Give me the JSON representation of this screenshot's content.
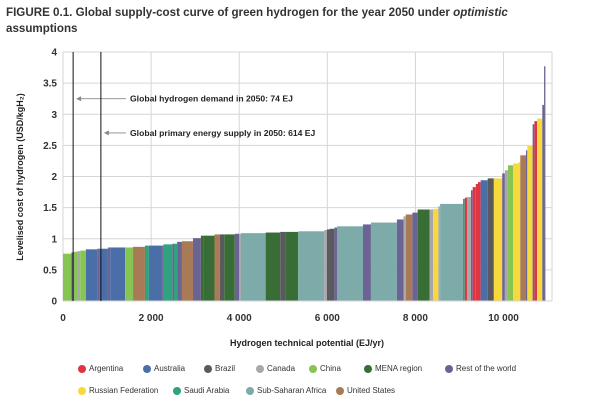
{
  "figure": {
    "title_prefix": "FIGURE 0.1. Global supply-cost curve of green hydrogen for the year 2050 under ",
    "title_italic": "optimistic",
    "title_suffix": "assumptions"
  },
  "chart_data": {
    "type": "bar",
    "subtype": "supply-cost-curve (variable-width bars)",
    "title": "Global supply-cost curve of green hydrogen for the year 2050 under optimistic assumptions",
    "xlabel": "Hydrogen technical potential (EJ/yr)",
    "ylabel": "Levelised cost of hydrogen (USD/kgH₂)",
    "xlim": [
      0,
      11100
    ],
    "ylim": [
      0,
      4
    ],
    "xticks": [
      0,
      2000,
      4000,
      6000,
      8000,
      10000
    ],
    "xtick_labels": [
      "0",
      "2 000",
      "4 000",
      "6 000",
      "8 000",
      "10 000"
    ],
    "yticks": [
      0,
      0.5,
      1,
      1.5,
      2,
      2.5,
      3,
      3.5,
      4
    ],
    "ytick_labels": [
      "0",
      "0.5",
      "1",
      "1.5",
      "2",
      "2.5",
      "3",
      "3.5",
      "4"
    ],
    "grid": true,
    "legend_position": "bottom",
    "regions": [
      {
        "name": "Argentina",
        "color": "#e03441"
      },
      {
        "name": "Australia",
        "color": "#4a6fa8"
      },
      {
        "name": "Brazil",
        "color": "#5a5a5e"
      },
      {
        "name": "Canada",
        "color": "#a8a8ac"
      },
      {
        "name": "China",
        "color": "#86c552"
      },
      {
        "name": "MENA region",
        "color": "#386d36"
      },
      {
        "name": "Rest of the world",
        "color": "#6b6393"
      },
      {
        "name": "Russian Federation",
        "color": "#f7d93b"
      },
      {
        "name": "Saudi Arabia",
        "color": "#2ea47e"
      },
      {
        "name": "Sub-Saharan Africa",
        "color": "#7dabaa"
      },
      {
        "name": "United States",
        "color": "#a87a56"
      }
    ],
    "segments": [
      {
        "x0": 0,
        "x1": 190,
        "cost": 0.76,
        "region": "China"
      },
      {
        "x0": 190,
        "x1": 230,
        "cost": 0.78,
        "region": "Rest of the world"
      },
      {
        "x0": 230,
        "x1": 330,
        "cost": 0.79,
        "region": "China"
      },
      {
        "x0": 330,
        "x1": 390,
        "cost": 0.8,
        "region": "Canada"
      },
      {
        "x0": 390,
        "x1": 520,
        "cost": 0.81,
        "region": "China"
      },
      {
        "x0": 520,
        "x1": 780,
        "cost": 0.83,
        "region": "Australia"
      },
      {
        "x0": 780,
        "x1": 820,
        "cost": 0.84,
        "region": "Rest of the world"
      },
      {
        "x0": 820,
        "x1": 1020,
        "cost": 0.84,
        "region": "Australia"
      },
      {
        "x0": 1020,
        "x1": 1070,
        "cost": 0.86,
        "region": "Rest of the world"
      },
      {
        "x0": 1070,
        "x1": 1410,
        "cost": 0.86,
        "region": "Australia"
      },
      {
        "x0": 1410,
        "x1": 1590,
        "cost": 0.86,
        "region": "China"
      },
      {
        "x0": 1590,
        "x1": 1860,
        "cost": 0.87,
        "region": "United States"
      },
      {
        "x0": 1860,
        "x1": 1950,
        "cost": 0.89,
        "region": "Saudi Arabia"
      },
      {
        "x0": 1950,
        "x1": 2250,
        "cost": 0.89,
        "region": "Australia"
      },
      {
        "x0": 2250,
        "x1": 2280,
        "cost": 0.89,
        "region": "Rest of the world"
      },
      {
        "x0": 2280,
        "x1": 2480,
        "cost": 0.91,
        "region": "Saudi Arabia"
      },
      {
        "x0": 2480,
        "x1": 2520,
        "cost": 0.92,
        "region": "Rest of the world"
      },
      {
        "x0": 2520,
        "x1": 2590,
        "cost": 0.92,
        "region": "Saudi Arabia"
      },
      {
        "x0": 2590,
        "x1": 2700,
        "cost": 0.95,
        "region": "Rest of the world"
      },
      {
        "x0": 2700,
        "x1": 2950,
        "cost": 0.96,
        "region": "United States"
      },
      {
        "x0": 2950,
        "x1": 3130,
        "cost": 1.01,
        "region": "Rest of the world"
      },
      {
        "x0": 3130,
        "x1": 3180,
        "cost": 1.05,
        "region": "MENA region"
      },
      {
        "x0": 3180,
        "x1": 3440,
        "cost": 1.05,
        "region": "MENA region"
      },
      {
        "x0": 3440,
        "x1": 3560,
        "cost": 1.07,
        "region": "United States"
      },
      {
        "x0": 3560,
        "x1": 3660,
        "cost": 1.07,
        "region": "Brazil"
      },
      {
        "x0": 3660,
        "x1": 3900,
        "cost": 1.07,
        "region": "MENA region"
      },
      {
        "x0": 3900,
        "x1": 3950,
        "cost": 1.08,
        "region": "Rest of the world"
      },
      {
        "x0": 3950,
        "x1": 4000,
        "cost": 1.08,
        "region": "Rest of the world"
      },
      {
        "x0": 4000,
        "x1": 4040,
        "cost": 1.08,
        "region": "Canada"
      },
      {
        "x0": 4040,
        "x1": 4600,
        "cost": 1.09,
        "region": "Sub-Saharan Africa"
      },
      {
        "x0": 4600,
        "x1": 4930,
        "cost": 1.1,
        "region": "MENA region"
      },
      {
        "x0": 4930,
        "x1": 5060,
        "cost": 1.11,
        "region": "Brazil"
      },
      {
        "x0": 5060,
        "x1": 5340,
        "cost": 1.11,
        "region": "MENA region"
      },
      {
        "x0": 5340,
        "x1": 5930,
        "cost": 1.12,
        "region": "Sub-Saharan Africa"
      },
      {
        "x0": 5930,
        "x1": 5990,
        "cost": 1.14,
        "region": "Canada"
      },
      {
        "x0": 5990,
        "x1": 6050,
        "cost": 1.15,
        "region": "Brazil"
      },
      {
        "x0": 6050,
        "x1": 6160,
        "cost": 1.16,
        "region": "Brazil"
      },
      {
        "x0": 6160,
        "x1": 6220,
        "cost": 1.18,
        "region": "Rest of the world"
      },
      {
        "x0": 6220,
        "x1": 6810,
        "cost": 1.2,
        "region": "Sub-Saharan Africa"
      },
      {
        "x0": 6810,
        "x1": 6990,
        "cost": 1.23,
        "region": "Rest of the world"
      },
      {
        "x0": 6990,
        "x1": 7580,
        "cost": 1.26,
        "region": "Sub-Saharan Africa"
      },
      {
        "x0": 7580,
        "x1": 7730,
        "cost": 1.31,
        "region": "Rest of the world"
      },
      {
        "x0": 7730,
        "x1": 7780,
        "cost": 1.36,
        "region": "Canada"
      },
      {
        "x0": 7780,
        "x1": 7930,
        "cost": 1.39,
        "region": "United States"
      },
      {
        "x0": 7930,
        "x1": 8050,
        "cost": 1.42,
        "region": "Rest of the world"
      },
      {
        "x0": 8050,
        "x1": 8320,
        "cost": 1.47,
        "region": "MENA region"
      },
      {
        "x0": 8320,
        "x1": 8400,
        "cost": 1.47,
        "region": "Canada"
      },
      {
        "x0": 8400,
        "x1": 8520,
        "cost": 1.48,
        "region": "Russian Federation"
      },
      {
        "x0": 8520,
        "x1": 8560,
        "cost": 1.52,
        "region": "Canada"
      },
      {
        "x0": 8560,
        "x1": 9080,
        "cost": 1.56,
        "region": "Sub-Saharan Africa"
      },
      {
        "x0": 9080,
        "x1": 9120,
        "cost": 1.64,
        "region": "Saudi Arabia"
      },
      {
        "x0": 9120,
        "x1": 9170,
        "cost": 1.66,
        "region": "Argentina"
      },
      {
        "x0": 9170,
        "x1": 9260,
        "cost": 1.67,
        "region": "Canada"
      },
      {
        "x0": 9260,
        "x1": 9300,
        "cost": 1.78,
        "region": "Rest of the world"
      },
      {
        "x0": 9300,
        "x1": 9370,
        "cost": 1.83,
        "region": "Argentina"
      },
      {
        "x0": 9370,
        "x1": 9420,
        "cost": 1.88,
        "region": "Argentina"
      },
      {
        "x0": 9420,
        "x1": 9480,
        "cost": 1.91,
        "region": "Argentina"
      },
      {
        "x0": 9480,
        "x1": 9640,
        "cost": 1.94,
        "region": "Australia"
      },
      {
        "x0": 9640,
        "x1": 9780,
        "cost": 1.97,
        "region": "Brazil"
      },
      {
        "x0": 9780,
        "x1": 9970,
        "cost": 1.97,
        "region": "Russian Federation"
      },
      {
        "x0": 9970,
        "x1": 10030,
        "cost": 2.05,
        "region": "Rest of the world"
      },
      {
        "x0": 10030,
        "x1": 10100,
        "cost": 2.1,
        "region": "Canada"
      },
      {
        "x0": 10100,
        "x1": 10220,
        "cost": 2.18,
        "region": "China"
      },
      {
        "x0": 10220,
        "x1": 10340,
        "cost": 2.21,
        "region": "Russian Federation"
      },
      {
        "x0": 10340,
        "x1": 10380,
        "cost": 2.23,
        "region": "Russian Federation"
      },
      {
        "x0": 10380,
        "x1": 10510,
        "cost": 2.34,
        "region": "United States"
      },
      {
        "x0": 10510,
        "x1": 10540,
        "cost": 2.42,
        "region": "Rest of the world"
      },
      {
        "x0": 10540,
        "x1": 10660,
        "cost": 2.49,
        "region": "Russian Federation"
      },
      {
        "x0": 10660,
        "x1": 10700,
        "cost": 2.84,
        "region": "Rest of the world"
      },
      {
        "x0": 10700,
        "x1": 10760,
        "cost": 2.89,
        "region": "Argentina"
      },
      {
        "x0": 10760,
        "x1": 10880,
        "cost": 2.93,
        "region": "Russian Federation"
      },
      {
        "x0": 10880,
        "x1": 10920,
        "cost": 3.15,
        "region": "Rest of the world"
      },
      {
        "x0": 10920,
        "x1": 10950,
        "cost": 3.77,
        "region": "Rest of the world"
      }
    ],
    "annotations": [
      {
        "label": "Global hydrogen demand in 2050: 74 EJ",
        "x": 230,
        "arrow_cost": 3.25
      },
      {
        "label": "Global primary energy supply in 2050: 614 EJ",
        "x": 860,
        "arrow_cost": 2.7
      }
    ]
  }
}
